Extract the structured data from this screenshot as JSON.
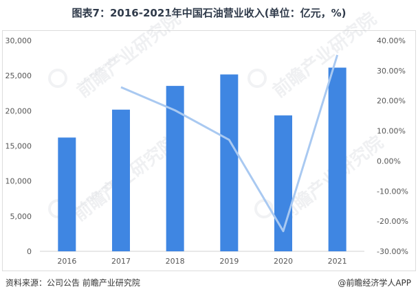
{
  "title": "图表7：2016-2021年中国石油营业收入(单位：亿元，%)",
  "footer": {
    "source": "资料来源：公司公告 前瞻产业研究院",
    "brand": "@前瞻经济学人APP"
  },
  "watermark": {
    "text": "前瞻产业研究院",
    "subtext": "中国产业咨询领导者"
  },
  "colors": {
    "bar": "#3f86e2",
    "line": "#a9c9f1",
    "axis_text": "#555555",
    "grid": "#e6e6e6"
  },
  "chart_data": {
    "type": "bar",
    "title": "图表7：2016-2021年中国石油营业收入(单位：亿元，%)",
    "categories": [
      "2016",
      "2017",
      "2018",
      "2019",
      "2020",
      "2021"
    ],
    "series": [
      {
        "values": [
          16190,
          20160,
          23540,
          25170,
          19340,
          26140
        ],
        "axis": "left",
        "kind": "bar"
      },
      {
        "values": [
          null,
          24.5,
          16.8,
          7.0,
          -23.3,
          35.2
        ],
        "axis": "right",
        "kind": "line"
      }
    ],
    "ylim_left": [
      0,
      30000
    ],
    "yticks_left": [
      "0",
      "5,000",
      "10,000",
      "15,000",
      "20,000",
      "25,000",
      "30,000"
    ],
    "ylim_right": [
      -30,
      40
    ],
    "yticks_right": [
      "-30.00%",
      "-20.00%",
      "-10.00%",
      "0.00%",
      "10.00%",
      "20.00%",
      "30.00%",
      "40.00%"
    ],
    "grid": false,
    "legend": "none"
  }
}
